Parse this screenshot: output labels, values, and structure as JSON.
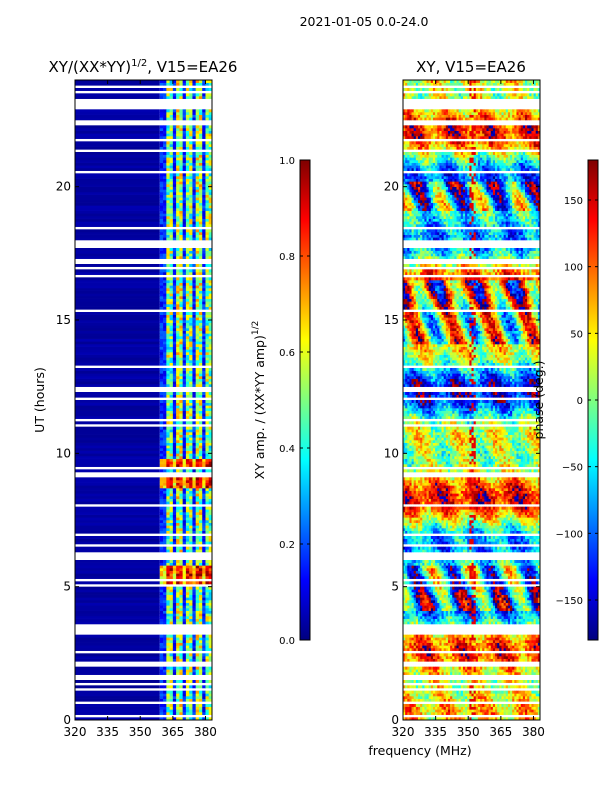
{
  "figure": {
    "suptitle": "2021-01-05 0.0-24.0"
  },
  "colormap": [
    "#00007f",
    "#0000ff",
    "#007fff",
    "#00ffff",
    "#7fff7f",
    "#ffff00",
    "#ff7f00",
    "#ff0000",
    "#7f0000"
  ],
  "chart_data": [
    {
      "type": "heatmap",
      "name": "xy-amplitude-ratio",
      "title": "XY/(XX*YY)",
      "title_sup": "1/2",
      "title_suffix": ", V15=EA26",
      "xlabel": "",
      "ylabel": "UT (hours)",
      "xlim": [
        320,
        383
      ],
      "ylim": [
        0,
        24
      ],
      "xticks": [
        320,
        335,
        350,
        365,
        380
      ],
      "yticks": [
        0,
        5,
        10,
        15,
        20
      ],
      "background_value": 0.0,
      "active_channel_range_mhz": [
        359,
        383
      ],
      "high_value_bands_hours": [
        [
          5.0,
          5.8
        ],
        [
          8.7,
          9.1
        ],
        [
          9.4,
          9.8
        ]
      ],
      "colorbar": {
        "label": "XY amp. / (XX*YY amp)",
        "label_sup": "1/2",
        "range": [
          0.0,
          1.0
        ],
        "ticks": [
          "0.0",
          "0.2",
          "0.4",
          "0.6",
          "0.8",
          "1.0"
        ]
      }
    },
    {
      "type": "heatmap",
      "name": "xy-phase",
      "title": "XY, V15=EA26",
      "xlabel": "frequency (MHz)",
      "ylabel": "",
      "xlim": [
        320,
        383
      ],
      "ylim": [
        0,
        24
      ],
      "xticks": [
        320,
        335,
        350,
        365,
        380
      ],
      "yticks": [
        0,
        5,
        10,
        15,
        20
      ],
      "colorbar": {
        "label": "phase (deg.)",
        "range": [
          -180,
          180
        ],
        "ticks": [
          "150",
          "100",
          "50",
          "0",
          "−50",
          "−100",
          "−150"
        ]
      }
    }
  ]
}
